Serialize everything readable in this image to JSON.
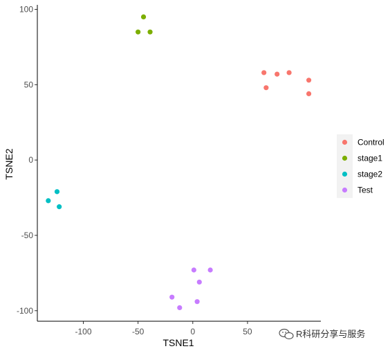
{
  "chart_data": {
    "type": "scatter",
    "title": "",
    "xlabel": "TSNE1",
    "ylabel": "TSNE2",
    "xlim": [
      -142,
      117
    ],
    "ylim": [
      -107,
      103
    ],
    "x_ticks": [
      -100,
      -50,
      0,
      50
    ],
    "y_ticks": [
      -100,
      -50,
      0,
      50,
      100
    ],
    "grid": false,
    "legend_position": "right",
    "series": [
      {
        "name": "Control",
        "color": "#F8766D",
        "points": [
          [
            65,
            58
          ],
          [
            77,
            57
          ],
          [
            88,
            58
          ],
          [
            106,
            53
          ],
          [
            67,
            48
          ],
          [
            106,
            44
          ]
        ]
      },
      {
        "name": "stage1",
        "color": "#7CAE00",
        "points": [
          [
            -45,
            95
          ],
          [
            -50,
            85
          ],
          [
            -39,
            85
          ]
        ]
      },
      {
        "name": "stage2",
        "color": "#00BFC4",
        "points": [
          [
            -124,
            -21
          ],
          [
            -132,
            -27
          ],
          [
            -122,
            -31
          ]
        ]
      },
      {
        "name": "Test",
        "color": "#C77CFF",
        "points": [
          [
            1,
            -73
          ],
          [
            16,
            -73
          ],
          [
            6,
            -81
          ],
          [
            -19,
            -91
          ],
          [
            4,
            -94
          ],
          [
            -12,
            -98
          ]
        ]
      }
    ]
  },
  "watermark": {
    "text": "R科研分享与服务"
  }
}
